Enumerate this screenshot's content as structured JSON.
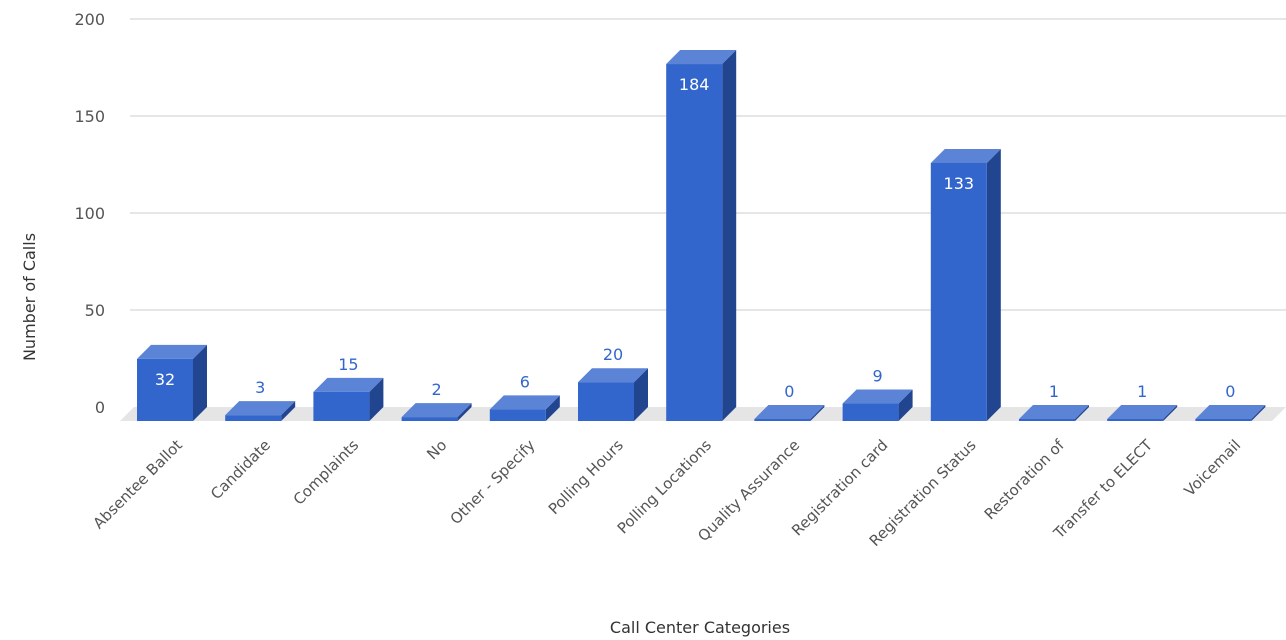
{
  "chart_data": {
    "type": "bar",
    "style": "3d",
    "categories": [
      "Absentee Ballot",
      "Candidate",
      "Complaints",
      "No",
      "Other - Specify",
      "Polling Hours",
      "Polling Locations",
      "Quality Assurance",
      "Registration card",
      "Registration Status",
      "Restoration of",
      "Transfer to ELECT",
      "Voicemail"
    ],
    "values": [
      32,
      3,
      15,
      2,
      6,
      20,
      184,
      0,
      9,
      133,
      1,
      1,
      0
    ],
    "xlabel": "Call Center Categories",
    "ylabel": "Number of Calls",
    "ylim": [
      0,
      200
    ],
    "yticks": [
      0,
      50,
      100,
      150,
      200
    ],
    "grid": true,
    "legend": "none",
    "colors": {
      "front": "#3366cc",
      "top": "#5b83d6",
      "side": "#22458f",
      "floor": "#e5e5e5",
      "grid": "#cccccc"
    }
  }
}
